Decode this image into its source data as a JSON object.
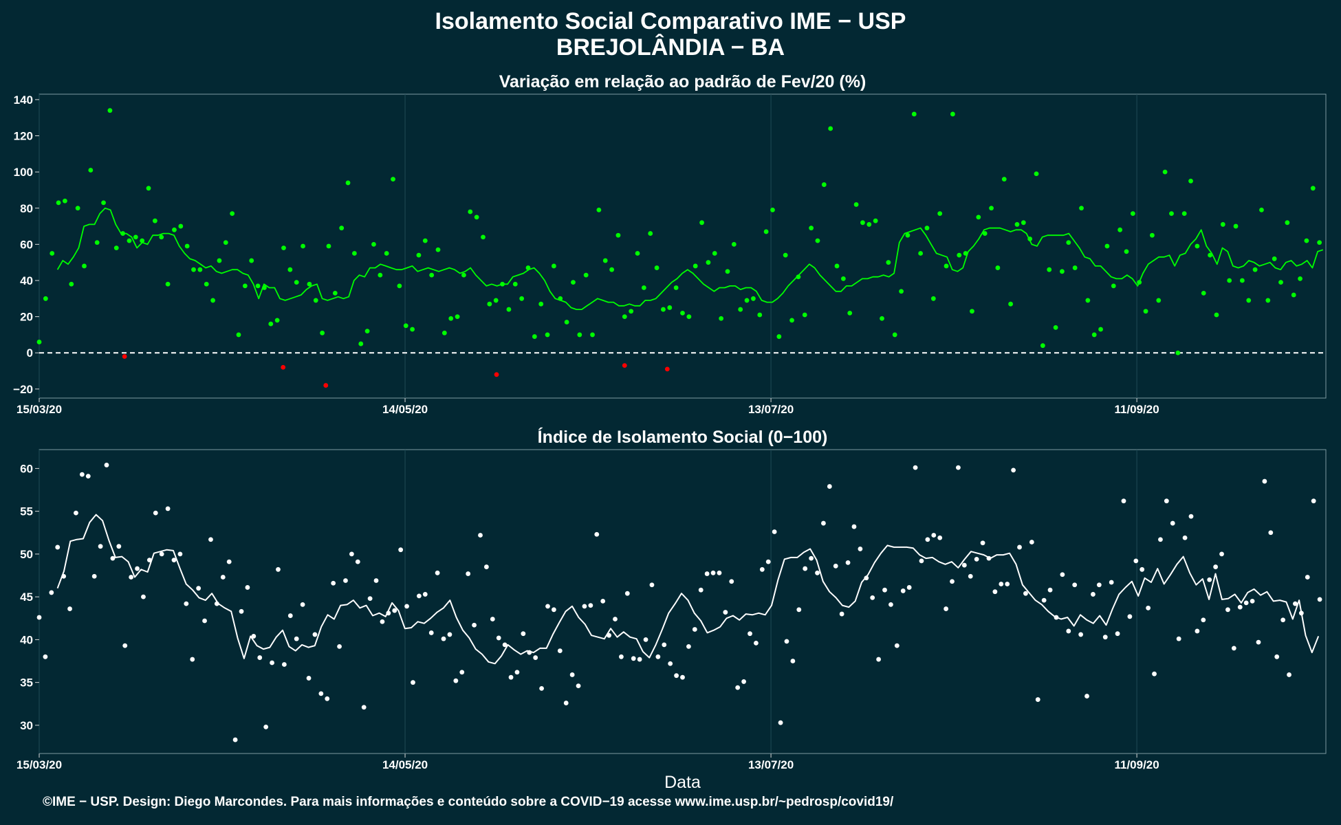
{
  "title": "Isolamento Social Comparativo IME − USP",
  "subtitle": "BREJOLÂNDIA − BA",
  "caption": "©IME − USP. Design: Diego Marcondes. Para mais informações e conteúdo sobre a COVID−19 acesse www.ime.usp.br/~pedrosp/covid19/",
  "colors": {
    "background": "#032833",
    "axis": "#d9d9d9",
    "grid": "#1f4a56",
    "positive": "#00ff00",
    "negative": "#ff0000",
    "index": "#ffffff"
  },
  "chart_data": [
    {
      "type": "scatter",
      "title": "Variação em relação ao padrão de Fev/20 (%)",
      "xlabel": "",
      "ylabel": "",
      "x_start": "15/03/20",
      "x_range_days": [
        0,
        211
      ],
      "xticks": [
        {
          "day": 0,
          "label": "15/03/20"
        },
        {
          "day": 60,
          "label": "14/05/20"
        },
        {
          "day": 120,
          "label": "13/07/20"
        },
        {
          "day": 180,
          "label": "11/09/20"
        }
      ],
      "ylim": [
        -25,
        143
      ],
      "yticks": [
        -20,
        0,
        20,
        40,
        60,
        80,
        100,
        120,
        140
      ],
      "reference_line": 0,
      "grid": true,
      "series": [
        {
          "values": [
            6,
            30,
            55,
            83,
            84,
            38,
            80,
            48,
            101,
            61,
            83,
            134,
            58,
            66,
            62,
            64,
            62,
            91,
            73,
            64,
            38,
            68,
            70,
            59,
            46,
            46,
            38,
            29,
            51,
            61,
            77,
            10,
            37,
            51,
            37,
            36,
            16,
            18,
            58,
            46,
            39,
            59,
            38,
            29,
            11,
            59,
            33,
            69,
            94,
            55,
            5,
            12,
            60,
            43,
            55,
            96,
            37,
            15,
            13,
            54,
            62,
            43,
            57,
            11,
            19,
            20,
            43,
            78,
            75,
            64,
            27,
            29,
            38,
            24,
            38,
            30,
            47,
            9,
            27,
            10,
            48,
            30,
            17,
            39,
            10,
            43,
            10,
            79,
            51,
            46,
            65,
            20,
            23,
            55,
            36,
            66,
            47,
            24,
            25,
            36,
            22,
            20,
            48,
            72,
            50,
            55,
            19,
            45,
            60,
            24,
            29,
            30,
            21,
            67,
            79,
            9,
            54,
            18,
            42,
            21,
            69,
            62,
            93,
            124,
            48,
            41,
            22,
            82,
            72,
            71,
            73,
            19,
            50,
            10,
            34,
            65,
            132,
            55,
            69,
            30,
            77,
            48,
            132,
            54,
            55,
            23,
            75,
            66,
            80,
            47,
            96,
            27,
            71,
            72,
            63,
            99,
            4,
            46,
            14,
            45,
            61,
            47,
            80,
            29,
            10,
            13,
            59,
            37,
            68,
            56,
            77,
            39,
            23,
            65,
            29,
            100,
            77,
            0,
            77,
            95,
            59,
            33,
            54,
            21,
            71,
            40,
            70,
            40,
            29,
            46,
            79,
            29,
            52,
            39,
            72,
            32,
            41,
            62,
            91,
            61
          ]
        },
        {
          "points": [
            [
              14,
              -2
            ],
            [
              40,
              -8
            ],
            [
              47,
              -18
            ],
            [
              75,
              -12
            ],
            [
              96,
              -7
            ],
            [
              103,
              -9
            ]
          ]
        }
      ],
      "moving_average": [
        46,
        51,
        49,
        53,
        58,
        70,
        71,
        71,
        77,
        80,
        79,
        71,
        66,
        66,
        64,
        58,
        61,
        60,
        65,
        65,
        66,
        66,
        65,
        59,
        55,
        52,
        51,
        49,
        47,
        48,
        45,
        44,
        45,
        46,
        46,
        44,
        43,
        38,
        30,
        38,
        36,
        36,
        30,
        29,
        30,
        31,
        32,
        35,
        37,
        38,
        30,
        29,
        30,
        31,
        30,
        31,
        40,
        43,
        42,
        47,
        47,
        49,
        48,
        47,
        46,
        46,
        47,
        48,
        45,
        46,
        47,
        46,
        45,
        46,
        47,
        46,
        44,
        45,
        47,
        43,
        40,
        37,
        38,
        37,
        38,
        38,
        42,
        43,
        44,
        46,
        47,
        44,
        40,
        34,
        30,
        29,
        28,
        25,
        24,
        24,
        26,
        28,
        30,
        29,
        28,
        28,
        26,
        26,
        27,
        26,
        26,
        29,
        29,
        30,
        33,
        36,
        39,
        41,
        44,
        46,
        44,
        41,
        38,
        36,
        34,
        36,
        36,
        37,
        37,
        35,
        36,
        36,
        34,
        29,
        28,
        28,
        30,
        33,
        37,
        40,
        43,
        46,
        49,
        47,
        43,
        40,
        37,
        34,
        34,
        37,
        37,
        39,
        41,
        41,
        42,
        42,
        43,
        42,
        44,
        61,
        66,
        67,
        68,
        69,
        65,
        60,
        55,
        54,
        53,
        46,
        45,
        47,
        56,
        59,
        63,
        68,
        69,
        69,
        69,
        68,
        67,
        68,
        68,
        66,
        60,
        59,
        64,
        65,
        65,
        65,
        65,
        66,
        62,
        58,
        53,
        52,
        48,
        48,
        45,
        42,
        41,
        41,
        43,
        41,
        37,
        44,
        49,
        51,
        53,
        53,
        54,
        48,
        54,
        55,
        60,
        63,
        68,
        59,
        55,
        49,
        58,
        56,
        48,
        47,
        48,
        51,
        50,
        48,
        49,
        50,
        47,
        46,
        50,
        51,
        48,
        49,
        51,
        47,
        56,
        57
      ],
      "segments_below_previous": []
    },
    {
      "type": "scatter",
      "title": "Índice de Isolamento Social (0−100)",
      "xlabel": "Data",
      "ylabel": "",
      "x_start": "15/03/20",
      "x_range_days": [
        0,
        211
      ],
      "xticks": [
        {
          "day": 0,
          "label": "15/03/20"
        },
        {
          "day": 60,
          "label": "14/05/20"
        },
        {
          "day": 120,
          "label": "13/07/20"
        },
        {
          "day": 180,
          "label": "11/09/20"
        }
      ],
      "ylim": [
        26.7,
        62.2
      ],
      "yticks": [
        30,
        35,
        40,
        45,
        50,
        55,
        60
      ],
      "grid": true,
      "series": [
        {
          "values": [
            42.6,
            38,
            45.5,
            50.8,
            47.4,
            43.6,
            54.8,
            59.3,
            59.1,
            47.4,
            50.9,
            60.4,
            49.5,
            50.9,
            39.3,
            47.3,
            48.3,
            45,
            49.3,
            54.8,
            50,
            55.3,
            49.3,
            50,
            44.2,
            37.7,
            46,
            42.2,
            51.7,
            44.2,
            47.3,
            49.1,
            28.3,
            43.3,
            46.1,
            40.4,
            37.9,
            29.8,
            37.3,
            48.2,
            37.1,
            42.8,
            40.1,
            44.1,
            35.5,
            40.6,
            33.7,
            33.1,
            46.6,
            39.2,
            46.9,
            50,
            49.1,
            32.1,
            44.8,
            46.9,
            42.1,
            43.1,
            43.4,
            50.5,
            43.9,
            35,
            45.1,
            45.3,
            40.8,
            47.8,
            40.1,
            40.6,
            35.2,
            36.2,
            47.7,
            41.7,
            52.2,
            48.5,
            42.4,
            40.2,
            39.4,
            35.6,
            36.2,
            40.7,
            38.5,
            37.9,
            34.3,
            43.9,
            43.5,
            38.7,
            32.6,
            35.9,
            34.6,
            43.9,
            44,
            52.3,
            44.5,
            40.5,
            42.4,
            38,
            45.4,
            37.8,
            37.7,
            40,
            46.4,
            38,
            39.4,
            37.2,
            35.8,
            35.6,
            39.2,
            41.2,
            45.8,
            47.7,
            47.8,
            47.8,
            43.2,
            46.8,
            34.4,
            35.1,
            40.7,
            39.6,
            48.2,
            49.1,
            52.6,
            30.3,
            39.8,
            37.5,
            43.5,
            48.3,
            49.5,
            47.8,
            53.6,
            57.9,
            48.6,
            43,
            49,
            53.2,
            50.6,
            47.2,
            44.9,
            37.7,
            45.8,
            44.1,
            39.3,
            45.7,
            46.1,
            60.1,
            49.2,
            51.7,
            52.2,
            51.9,
            43.6,
            46.8,
            60.1,
            48.7,
            47.4,
            49.4,
            51.3,
            49.5,
            45.6,
            46.5,
            46.5,
            59.8,
            50.8,
            45.4,
            51.4,
            33,
            44.6,
            45.8,
            42.6,
            47.6,
            41,
            46.4,
            40.6,
            33.4,
            45.3,
            46.4,
            40.3,
            46.7,
            40.7,
            56.2,
            42.7,
            49.2,
            48.2,
            43.7,
            36,
            51.7,
            56.2,
            53.6,
            40.1,
            51.9,
            54.4,
            41,
            42.3,
            47,
            48.5,
            50,
            43.5,
            39,
            43.8,
            44.3,
            44.5,
            39.7,
            58.5,
            52.5,
            38,
            42.3,
            35.9,
            44.2,
            43.1,
            47.3,
            56.2,
            44.7
          ]
        },
        {
          "points": []
        }
      ],
      "moving_average": [
        46,
        48,
        51.5,
        51.7,
        51.8,
        53.7,
        54.6,
        53.9,
        51.6,
        49.6,
        49.7,
        49.1,
        47.3,
        48.2,
        47.9,
        50.1,
        50.3,
        50.5,
        50.4,
        48.4,
        46.5,
        45.8,
        44.9,
        44.6,
        45.4,
        44.2,
        43.7,
        43.3,
        40.2,
        37.8,
        40.4,
        39.3,
        38.9,
        39.1,
        40.3,
        41.1,
        39.2,
        38.7,
        39.4,
        39.1,
        39.3,
        41.5,
        42.9,
        42.4,
        44,
        44.1,
        44.6,
        43.7,
        44,
        42.8,
        43.1,
        42.7,
        44.3,
        43.4,
        41.3,
        41.4,
        42.1,
        41.9,
        42.5,
        43.2,
        43.7,
        44.6,
        42.6,
        41.1,
        40.2,
        38.9,
        38.3,
        37.4,
        37.2,
        38.1,
        39.4,
        38.8,
        38.3,
        38.7,
        38.5,
        39,
        39,
        40.6,
        42,
        43.3,
        43.9,
        42.6,
        41.8,
        40.5,
        40.3,
        40.1,
        41.3,
        40.3,
        40.9,
        40.3,
        40.1,
        38.6,
        37.9,
        39.4,
        41.2,
        43.1,
        44.2,
        45.4,
        44.6,
        43.1,
        42.2,
        40.8,
        41.1,
        41.5,
        42.5,
        42.8,
        42.3,
        43,
        42.9,
        43.1,
        42.9,
        44,
        47,
        49.4,
        49.6,
        49.6,
        50.2,
        50.6,
        49.3,
        46.8,
        45.6,
        44.9,
        44,
        43.8,
        44.5,
        46.7,
        47.6,
        49,
        50.1,
        51,
        50.8,
        50.8,
        50.8,
        50.7,
        49.9,
        49.5,
        49.6,
        49.1,
        48.8,
        49.1,
        48.4,
        49.4,
        50.3,
        50.1,
        49.9,
        49.5,
        49.9,
        49.9,
        50.1,
        48.8,
        46.4,
        45.5,
        44.6,
        44.1,
        43.3,
        42.7,
        42.4,
        42.6,
        41.6,
        42.9,
        42.3,
        41.9,
        42.8,
        41.7,
        43.6,
        45.3,
        46.1,
        46.8,
        45.1,
        47.2,
        46.7,
        48.3,
        46.5,
        47.6,
        48.8,
        49.7,
        47.8,
        46.4,
        47.1,
        44.7,
        47.7,
        44.7,
        44.8,
        45.3,
        44.3,
        45.5,
        45.9,
        45.2,
        45.6,
        44.5,
        44.6,
        44.4,
        42.4,
        44.6,
        40.5,
        38.5,
        40.4
      ]
    }
  ]
}
